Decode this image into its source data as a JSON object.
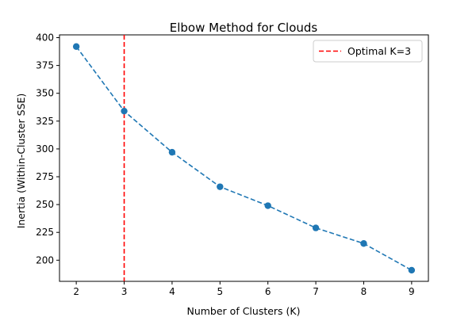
{
  "chart_data": {
    "type": "line",
    "title": "Elbow Method for Clouds",
    "xlabel": "Number of Clusters (K)",
    "ylabel": "Inertia (Within-Cluster SSE)",
    "x": [
      2,
      3,
      4,
      5,
      6,
      7,
      8,
      9
    ],
    "series": [
      {
        "values": [
          392,
          334,
          297,
          266,
          249,
          229,
          215,
          191
        ],
        "color": "#1f77b4",
        "line_style": "dashed",
        "marker": "circle"
      }
    ],
    "xlim": [
      1.65,
      9.35
    ],
    "ylim": [
      181,
      402.5
    ],
    "xticks": [
      "2",
      "3",
      "4",
      "5",
      "6",
      "7",
      "8",
      "9"
    ],
    "yticks": [
      "200",
      "225",
      "250",
      "275",
      "300",
      "325",
      "350",
      "375",
      "400"
    ],
    "reference_line": {
      "orientation": "vertical",
      "x": 3,
      "label": "Optimal K=3",
      "color": "#ff0000",
      "line_style": "dashed"
    },
    "grid": false,
    "legend_position": "top-right"
  }
}
